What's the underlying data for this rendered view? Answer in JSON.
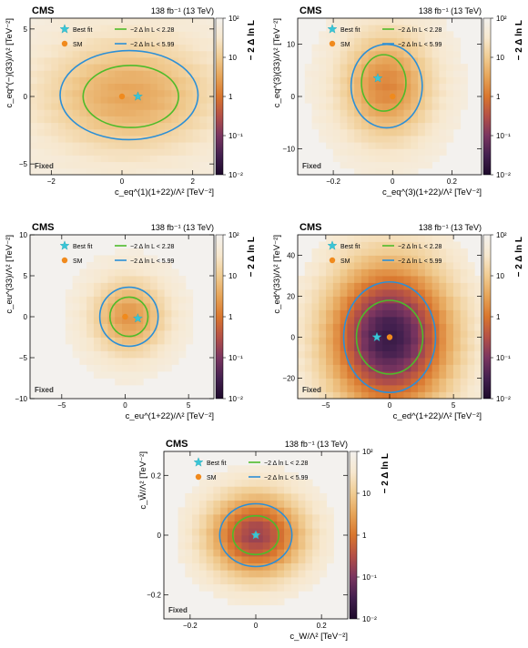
{
  "colorbar": {
    "title": "− 2 Δ ln L",
    "ticks": [
      "10⁻²",
      "10⁻¹",
      "1",
      "10",
      "10²"
    ],
    "colors": [
      "#1d0a2b",
      "#43204f",
      "#7a3560",
      "#b45047",
      "#d9762e",
      "#e6a458",
      "#f0cc92",
      "#f7e8cf",
      "#f3f1ee"
    ]
  },
  "panels": [
    {
      "experiment": "CMS",
      "lumi": "138 fb⁻¹ (13 TeV)",
      "xlabel": "c_eq^(1)(1+22)/Λ² [TeV⁻²]",
      "ylabel": "c_eq^(−)(33)/Λ² [TeV⁻²]",
      "xticks": [
        "−2",
        "0",
        "2"
      ],
      "yticks": [
        "−5",
        "0",
        "5"
      ],
      "fixed_label": "Fixed",
      "legend": {
        "best_fit": "Best fit",
        "sm": "SM",
        "c68": "−2 Δ ln L < 2.28",
        "c95": "−2 Δ ln L < 5.99"
      }
    },
    {
      "experiment": "CMS",
      "lumi": "138 fb⁻¹ (13 TeV)",
      "xlabel": "c_eq^(3)(1+22)/Λ² [TeV⁻²]",
      "ylabel": "c_eq^(3)(33)/Λ² [TeV⁻²]",
      "xticks": [
        "−0.2",
        "0",
        "0.2"
      ],
      "yticks": [
        "−10",
        "0",
        "10"
      ],
      "fixed_label": "Fixed",
      "legend": {
        "best_fit": "Best fit",
        "sm": "SM",
        "c68": "−2 Δ ln L < 2.28",
        "c95": "−2 Δ ln L < 5.99"
      }
    },
    {
      "experiment": "CMS",
      "lumi": "138 fb⁻¹ (13 TeV)",
      "xlabel": "c_eu^(1+22)/Λ² [TeV⁻²]",
      "ylabel": "c_eu^(33)/Λ² [TeV⁻²]",
      "xticks": [
        "−5",
        "0",
        "5"
      ],
      "yticks": [
        "−10",
        "−5",
        "0",
        "5",
        "10"
      ],
      "fixed_label": "Fixed",
      "legend": {
        "best_fit": "Best fit",
        "sm": "SM",
        "c68": "−2 Δ ln L < 2.28",
        "c95": "−2 Δ ln L < 5.99"
      }
    },
    {
      "experiment": "CMS",
      "lumi": "138 fb⁻¹ (13 TeV)",
      "xlabel": "c_ed^(1+22)/Λ² [TeV⁻²]",
      "ylabel": "c_ed^(33)/Λ² [TeV⁻²]",
      "xticks": [
        "−5",
        "0",
        "5"
      ],
      "yticks": [
        "−20",
        "0",
        "20",
        "40"
      ],
      "fixed_label": "Fixed",
      "legend": {
        "best_fit": "Best fit",
        "sm": "SM",
        "c68": "−2 Δ ln L < 2.28",
        "c95": "−2 Δ ln L < 5.99"
      }
    },
    {
      "experiment": "CMS",
      "lumi": "138 fb⁻¹ (13 TeV)",
      "xlabel": "c_W/Λ² [TeV⁻²]",
      "ylabel": "c_Ŵ/Λ² [TeV⁻²]",
      "xticks": [
        "−0.2",
        "0",
        "0.2"
      ],
      "yticks": [
        "−0.2",
        "0",
        "0.2"
      ],
      "fixed_label": "Fixed",
      "legend": {
        "best_fit": "Best fit",
        "sm": "SM",
        "c68": "−2 Δ ln L < 2.28",
        "c95": "−2 Δ ln L < 5.99"
      }
    }
  ],
  "chart_data": [
    {
      "type": "heatmap",
      "xlim": [
        -2.6,
        2.6
      ],
      "ylim": [
        -5.8,
        5.8
      ],
      "best_fit": [
        0.45,
        0.0
      ],
      "sm": [
        0.0,
        0.0
      ],
      "contour68": {
        "center": [
          0.25,
          0.0
        ],
        "rx": 1.35,
        "ry": 2.3
      },
      "contour95": {
        "center": [
          0.2,
          0.1
        ],
        "rx": 1.95,
        "ry": 3.3
      },
      "min_intensity": 0.35
    },
    {
      "type": "heatmap",
      "xlim": [
        -0.32,
        0.3
      ],
      "ylim": [
        -15,
        15
      ],
      "best_fit": [
        -0.05,
        3.5
      ],
      "sm": [
        0.0,
        0.0
      ],
      "contour68": {
        "center": [
          -0.03,
          2.6
        ],
        "rx": 0.075,
        "ry": 5.4
      },
      "contour95": {
        "center": [
          -0.02,
          2.0
        ],
        "rx": 0.12,
        "ry": 8.0
      },
      "min_intensity": 0.45
    },
    {
      "type": "heatmap",
      "xlim": [
        -7.5,
        7.0
      ],
      "ylim": [
        -10,
        10
      ],
      "best_fit": [
        1.0,
        -0.2
      ],
      "sm": [
        0.0,
        0.0
      ],
      "contour68": {
        "center": [
          0.3,
          0.0
        ],
        "rx": 1.5,
        "ry": 2.4
      },
      "contour95": {
        "center": [
          0.3,
          0.0
        ],
        "rx": 2.3,
        "ry": 3.6
      },
      "min_intensity": 0.4
    },
    {
      "type": "heatmap",
      "xlim": [
        -7.2,
        7.2
      ],
      "ylim": [
        -30,
        50
      ],
      "best_fit": [
        -1.0,
        0.0
      ],
      "sm": [
        0.0,
        0.0
      ],
      "contour68": {
        "center": [
          0.0,
          0.0
        ],
        "rx": 2.6,
        "ry": 18
      },
      "contour95": {
        "center": [
          0.0,
          0.0
        ],
        "rx": 3.6,
        "ry": 27
      },
      "min_intensity": 0.95
    },
    {
      "type": "heatmap",
      "xlim": [
        -0.28,
        0.28
      ],
      "ylim": [
        -0.28,
        0.28
      ],
      "best_fit": [
        0.0,
        0.0
      ],
      "sm": [
        0.0,
        0.0
      ],
      "contour68": {
        "center": [
          0.0,
          0.0
        ],
        "rx": 0.07,
        "ry": 0.065
      },
      "contour95": {
        "center": [
          0.0,
          0.0
        ],
        "rx": 0.11,
        "ry": 0.105
      },
      "min_intensity": 0.7
    }
  ]
}
